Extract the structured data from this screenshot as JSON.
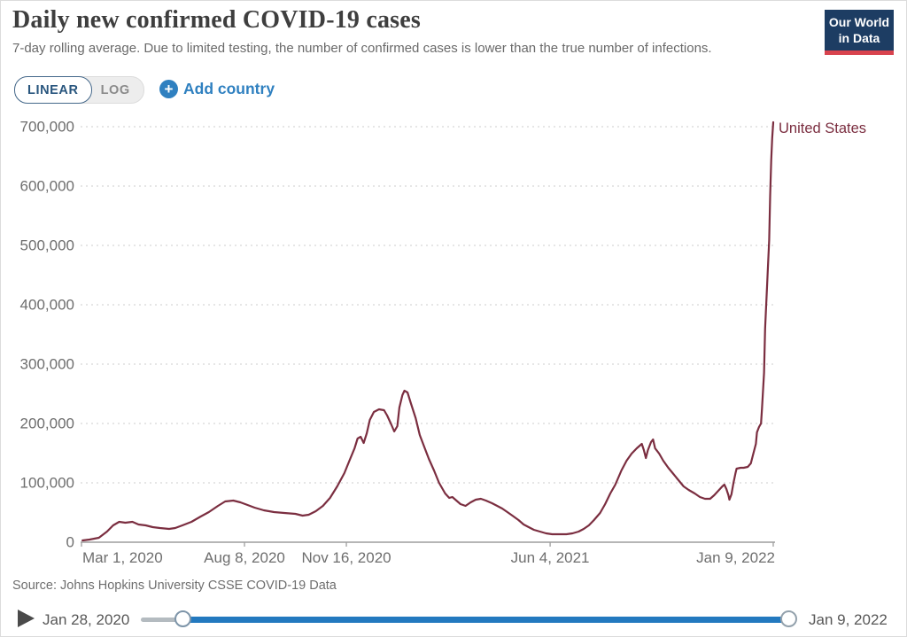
{
  "header": {
    "title": "Daily new confirmed COVID-19 cases",
    "subtitle": "7-day rolling average. Due to limited testing, the number of confirmed cases is lower than the true number of infections.",
    "logo": {
      "line1": "Our World",
      "line2": "in Data"
    }
  },
  "controls": {
    "linear_label": "LINEAR",
    "log_label": "LOG",
    "add_country_label": "Add country",
    "plus_glyph": "+"
  },
  "footer": {
    "source": "Source: Johns Hopkins University CSSE COVID-19 Data",
    "timeline_start": "Jan 28, 2020",
    "timeline_end": "Jan 9, 2022"
  },
  "colors": {
    "accent_blue": "#2f80c0",
    "slider_blue": "#2379bf",
    "series_maroon": "#7b2e40",
    "logo_navy": "#1d3d63",
    "logo_red": "#d8434e",
    "gridline": "#d6d6d6",
    "axis": "#9e9e9e"
  },
  "chart_data": {
    "type": "line",
    "title": "Daily new confirmed COVID-19 cases",
    "xlabel": "",
    "ylabel": "",
    "x_range": [
      "2020-01-28",
      "2022-01-09"
    ],
    "ylim": [
      0,
      700000
    ],
    "grid": "horizontal-dotted",
    "legend": "end-of-line-label",
    "y_ticks": [
      {
        "value": 0,
        "label": "0"
      },
      {
        "value": 100000,
        "label": "100,000"
      },
      {
        "value": 200000,
        "label": "200,000"
      },
      {
        "value": 300000,
        "label": "300,000"
      },
      {
        "value": 400000,
        "label": "400,000"
      },
      {
        "value": 500000,
        "label": "500,000"
      },
      {
        "value": 600000,
        "label": "600,000"
      },
      {
        "value": 700000,
        "label": "700,000"
      }
    ],
    "x_ticks": [
      {
        "date": "2020-03-01",
        "label": "Mar 1, 2020",
        "anchor": "start"
      },
      {
        "date": "2020-08-08",
        "label": "Aug 8, 2020",
        "anchor": "middle"
      },
      {
        "date": "2020-11-16",
        "label": "Nov 16, 2020",
        "anchor": "middle"
      },
      {
        "date": "2021-06-04",
        "label": "Jun 4, 2021",
        "anchor": "middle"
      },
      {
        "date": "2022-01-09",
        "label": "Jan 9, 2022",
        "anchor": "end"
      }
    ],
    "series": [
      {
        "name": "United States",
        "color": "#7b2e40",
        "points": [
          [
            "2020-03-02",
            3000
          ],
          [
            "2020-03-09",
            4500
          ],
          [
            "2020-03-18",
            7500
          ],
          [
            "2020-03-26",
            17900
          ],
          [
            "2020-04-01",
            28400
          ],
          [
            "2020-04-07",
            34300
          ],
          [
            "2020-04-13",
            32800
          ],
          [
            "2020-04-20",
            34300
          ],
          [
            "2020-04-26",
            29900
          ],
          [
            "2020-05-03",
            28400
          ],
          [
            "2020-05-10",
            25400
          ],
          [
            "2020-05-17",
            23900
          ],
          [
            "2020-05-26",
            22400
          ],
          [
            "2020-06-01",
            23900
          ],
          [
            "2020-06-08",
            28400
          ],
          [
            "2020-06-17",
            34300
          ],
          [
            "2020-06-26",
            43300
          ],
          [
            "2020-07-04",
            50700
          ],
          [
            "2020-07-13",
            61200
          ],
          [
            "2020-07-20",
            68700
          ],
          [
            "2020-07-28",
            70100
          ],
          [
            "2020-08-04",
            67200
          ],
          [
            "2020-08-11",
            62700
          ],
          [
            "2020-08-18",
            58200
          ],
          [
            "2020-08-27",
            53700
          ],
          [
            "2020-09-06",
            50700
          ],
          [
            "2020-09-16",
            49300
          ],
          [
            "2020-09-27",
            47800
          ],
          [
            "2020-10-04",
            44800
          ],
          [
            "2020-10-10",
            46300
          ],
          [
            "2020-10-17",
            52200
          ],
          [
            "2020-10-24",
            61200
          ],
          [
            "2020-10-31",
            74600
          ],
          [
            "2020-11-07",
            94000
          ],
          [
            "2020-11-14",
            116400
          ],
          [
            "2020-11-19",
            137300
          ],
          [
            "2020-11-24",
            158200
          ],
          [
            "2020-11-27",
            174600
          ],
          [
            "2020-11-30",
            177600
          ],
          [
            "2020-12-03",
            167200
          ],
          [
            "2020-12-06",
            183600
          ],
          [
            "2020-12-09",
            206000
          ],
          [
            "2020-12-13",
            219400
          ],
          [
            "2020-12-18",
            223900
          ],
          [
            "2020-12-23",
            222400
          ],
          [
            "2020-12-26",
            213400
          ],
          [
            "2020-12-30",
            198500
          ],
          [
            "2021-01-02",
            186600
          ],
          [
            "2021-01-05",
            195500
          ],
          [
            "2021-01-07",
            226900
          ],
          [
            "2021-01-10",
            247800
          ],
          [
            "2021-01-12",
            255200
          ],
          [
            "2021-01-15",
            252200
          ],
          [
            "2021-01-18",
            235800
          ],
          [
            "2021-01-23",
            209000
          ],
          [
            "2021-01-27",
            180600
          ],
          [
            "2021-02-01",
            158200
          ],
          [
            "2021-02-05",
            140300
          ],
          [
            "2021-02-10",
            120900
          ],
          [
            "2021-02-15",
            100000
          ],
          [
            "2021-02-21",
            82100
          ],
          [
            "2021-02-25",
            74600
          ],
          [
            "2021-02-28",
            76100
          ],
          [
            "2021-03-04",
            70100
          ],
          [
            "2021-03-08",
            64200
          ],
          [
            "2021-03-13",
            61200
          ],
          [
            "2021-03-18",
            67200
          ],
          [
            "2021-03-23",
            71600
          ],
          [
            "2021-03-28",
            73100
          ],
          [
            "2021-04-02",
            70100
          ],
          [
            "2021-04-08",
            65700
          ],
          [
            "2021-04-13",
            61200
          ],
          [
            "2021-04-18",
            56700
          ],
          [
            "2021-04-23",
            50700
          ],
          [
            "2021-04-28",
            44800
          ],
          [
            "2021-05-04",
            37300
          ],
          [
            "2021-05-09",
            29900
          ],
          [
            "2021-05-14",
            25400
          ],
          [
            "2021-05-19",
            20900
          ],
          [
            "2021-05-25",
            17900
          ],
          [
            "2021-05-31",
            14900
          ],
          [
            "2021-06-06",
            13400
          ],
          [
            "2021-06-13",
            13400
          ],
          [
            "2021-06-20",
            13400
          ],
          [
            "2021-06-26",
            14900
          ],
          [
            "2021-07-02",
            17900
          ],
          [
            "2021-07-07",
            22400
          ],
          [
            "2021-07-12",
            28400
          ],
          [
            "2021-07-17",
            37300
          ],
          [
            "2021-07-23",
            49300
          ],
          [
            "2021-07-28",
            64200
          ],
          [
            "2021-08-02",
            82100
          ],
          [
            "2021-08-07",
            97000
          ],
          [
            "2021-08-13",
            120900
          ],
          [
            "2021-08-18",
            137300
          ],
          [
            "2021-08-23",
            149300
          ],
          [
            "2021-08-28",
            158200
          ],
          [
            "2021-09-02",
            165700
          ],
          [
            "2021-09-04",
            155200
          ],
          [
            "2021-09-06",
            141800
          ],
          [
            "2021-09-08",
            155200
          ],
          [
            "2021-09-11",
            168700
          ],
          [
            "2021-09-13",
            173100
          ],
          [
            "2021-09-15",
            158200
          ],
          [
            "2021-09-19",
            149300
          ],
          [
            "2021-09-23",
            137300
          ],
          [
            "2021-09-28",
            125400
          ],
          [
            "2021-10-03",
            114900
          ],
          [
            "2021-10-08",
            104500
          ],
          [
            "2021-10-13",
            94000
          ],
          [
            "2021-10-18",
            88100
          ],
          [
            "2021-10-24",
            82100
          ],
          [
            "2021-10-29",
            76100
          ],
          [
            "2021-11-03",
            73100
          ],
          [
            "2021-11-08",
            73100
          ],
          [
            "2021-11-12",
            79100
          ],
          [
            "2021-11-16",
            86600
          ],
          [
            "2021-11-20",
            94000
          ],
          [
            "2021-11-22",
            97000
          ],
          [
            "2021-11-24",
            89600
          ],
          [
            "2021-11-26",
            79100
          ],
          [
            "2021-11-27",
            71600
          ],
          [
            "2021-11-29",
            80600
          ],
          [
            "2021-12-01",
            100000
          ],
          [
            "2021-12-03",
            116400
          ],
          [
            "2021-12-04",
            123900
          ],
          [
            "2021-12-08",
            125400
          ],
          [
            "2021-12-11",
            125400
          ],
          [
            "2021-12-15",
            126900
          ],
          [
            "2021-12-18",
            132800
          ],
          [
            "2021-12-20",
            146300
          ],
          [
            "2021-12-23",
            165700
          ],
          [
            "2021-12-24",
            185100
          ],
          [
            "2021-12-26",
            194000
          ],
          [
            "2021-12-28",
            200000
          ],
          [
            "2021-12-29",
            225400
          ],
          [
            "2021-12-31",
            285100
          ],
          [
            "2022-01-01",
            359700
          ],
          [
            "2022-01-03",
            434300
          ],
          [
            "2022-01-05",
            509000
          ],
          [
            "2022-01-06",
            583600
          ],
          [
            "2022-01-07",
            643300
          ],
          [
            "2022-01-08",
            680600
          ],
          [
            "2022-01-09",
            707500
          ]
        ]
      }
    ]
  }
}
